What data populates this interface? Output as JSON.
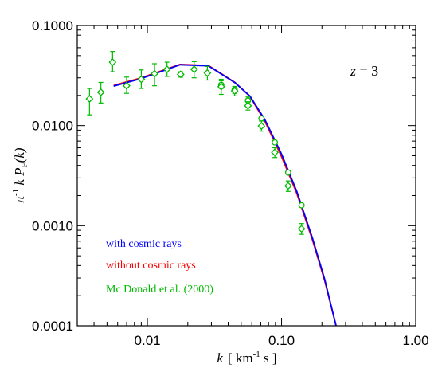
{
  "chart_data": {
    "type": "line",
    "x_scale": "log",
    "y_scale": "log",
    "xlim": [
      0.003,
      1.0
    ],
    "ylim": [
      0.0001,
      0.1
    ],
    "grid": false,
    "x_ticks": [
      {
        "value": 0.01,
        "label": "0.01"
      },
      {
        "value": 0.1,
        "label": "0.10"
      },
      {
        "value": 1.0,
        "label": "1.00"
      }
    ],
    "y_ticks": [
      {
        "value": 0.0001,
        "label": "0.0001"
      },
      {
        "value": 0.001,
        "label": "0.0010"
      },
      {
        "value": 0.01,
        "label": "0.0100"
      },
      {
        "value": 0.1,
        "label": "0.1000"
      }
    ],
    "xlabel": {
      "var": "k",
      "open": "[ km",
      "exp": "-1",
      "close": " s ]"
    },
    "ylabel": {
      "pi": "π",
      "exp": "-1",
      "k": " k  ",
      "P": "P",
      "sub": "F",
      "arg": "(k)"
    },
    "annotation": {
      "z": "z",
      "rest": " = 3"
    },
    "legend_position": "bottom-left",
    "series": [
      {
        "name": "with cosmic rays",
        "color": "#0000ff",
        "x": [
          0.0056,
          0.009,
          0.0175,
          0.0285,
          0.045,
          0.058,
          0.075,
          0.1,
          0.13,
          0.17,
          0.21,
          0.255
        ],
        "y": [
          0.0248,
          0.0295,
          0.0405,
          0.0395,
          0.0268,
          0.0198,
          0.0115,
          0.0052,
          0.0022,
          0.00075,
          0.00029,
          0.0001
        ]
      },
      {
        "name": "without cosmic rays",
        "color": "#ff0000",
        "x": [
          0.0056,
          0.009,
          0.0175,
          0.0285,
          0.045,
          0.058,
          0.075,
          0.1,
          0.13,
          0.17,
          0.21,
          0.255
        ],
        "y": [
          0.0252,
          0.03,
          0.0408,
          0.0398,
          0.027,
          0.0196,
          0.0111,
          0.0049,
          0.0021,
          0.00072,
          0.00028,
          0.0001
        ]
      },
      {
        "name": "Mc Donald et al. (2000)",
        "color": "#00bb00",
        "style": "points",
        "points": [
          {
            "x": 0.0037,
            "y": 0.0185,
            "lo": 0.0128,
            "hi": 0.0235,
            "marker": "diamond"
          },
          {
            "x": 0.0045,
            "y": 0.0215,
            "lo": 0.0168,
            "hi": 0.027,
            "marker": "diamond"
          },
          {
            "x": 0.0055,
            "y": 0.043,
            "lo": 0.0345,
            "hi": 0.055,
            "marker": "diamond"
          },
          {
            "x": 0.007,
            "y": 0.025,
            "lo": 0.021,
            "hi": 0.0305,
            "marker": "diamond"
          },
          {
            "x": 0.009,
            "y": 0.029,
            "lo": 0.0235,
            "hi": 0.036,
            "marker": "diamond"
          },
          {
            "x": 0.0113,
            "y": 0.033,
            "lo": 0.025,
            "hi": 0.0415,
            "marker": "diamond"
          },
          {
            "x": 0.014,
            "y": 0.0365,
            "lo": 0.031,
            "hi": 0.043,
            "marker": "diamond"
          },
          {
            "x": 0.0177,
            "y": 0.0325,
            "lo": 0.0305,
            "hi": 0.0345,
            "marker": "diamond"
          },
          {
            "x": 0.0223,
            "y": 0.0365,
            "lo": 0.03,
            "hi": 0.0435,
            "marker": "diamond"
          },
          {
            "x": 0.028,
            "y": 0.0335,
            "lo": 0.0285,
            "hi": 0.039,
            "marker": "diamond"
          },
          {
            "x": 0.0355,
            "y": 0.0255,
            "lo": 0.0235,
            "hi": 0.028,
            "marker": "circle"
          },
          {
            "x": 0.0355,
            "y": 0.0245,
            "lo": 0.0205,
            "hi": 0.029,
            "marker": "diamond"
          },
          {
            "x": 0.0447,
            "y": 0.0228,
            "lo": 0.021,
            "hi": 0.0246,
            "marker": "circle"
          },
          {
            "x": 0.0447,
            "y": 0.0222,
            "lo": 0.0198,
            "hi": 0.0246,
            "marker": "diamond"
          },
          {
            "x": 0.0562,
            "y": 0.0178,
            "lo": 0.0165,
            "hi": 0.0193,
            "marker": "circle"
          },
          {
            "x": 0.0562,
            "y": 0.0158,
            "lo": 0.0143,
            "hi": 0.0173,
            "marker": "diamond"
          },
          {
            "x": 0.0708,
            "y": 0.0118,
            "marker": "circle"
          },
          {
            "x": 0.0708,
            "y": 0.0099,
            "lo": 0.0088,
            "hi": 0.0111,
            "marker": "diamond"
          },
          {
            "x": 0.0891,
            "y": 0.0068,
            "marker": "circle"
          },
          {
            "x": 0.0891,
            "y": 0.0054,
            "lo": 0.0048,
            "hi": 0.006,
            "marker": "diamond"
          },
          {
            "x": 0.112,
            "y": 0.0034,
            "marker": "circle"
          },
          {
            "x": 0.112,
            "y": 0.0025,
            "lo": 0.0022,
            "hi": 0.0028,
            "marker": "diamond"
          },
          {
            "x": 0.141,
            "y": 0.0016,
            "marker": "circle"
          },
          {
            "x": 0.141,
            "y": 0.00093,
            "lo": 0.00082,
            "hi": 0.00105,
            "marker": "diamond"
          }
        ]
      }
    ]
  }
}
